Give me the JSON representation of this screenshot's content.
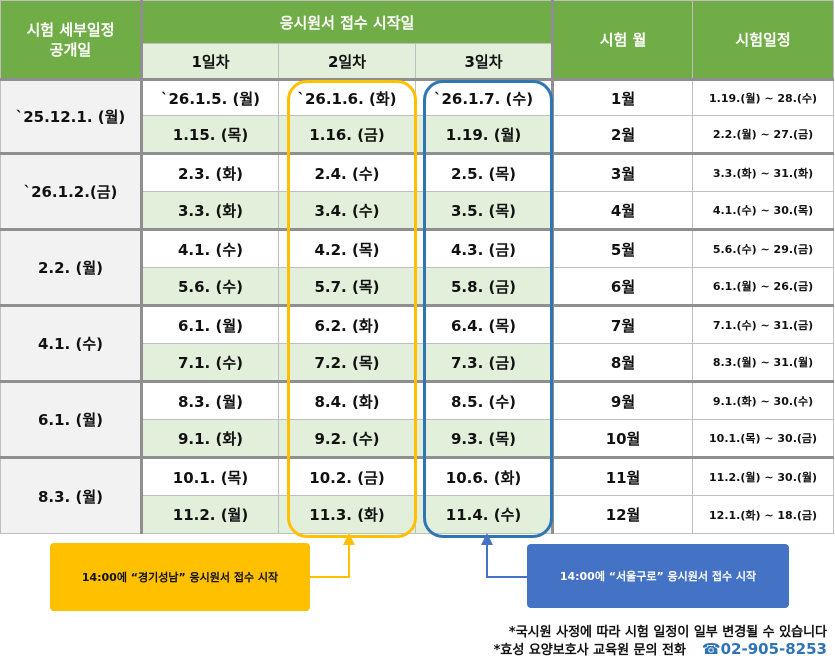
{
  "header": {
    "announce": "시험 세부일정\n공개일",
    "reception": "응시원서 접수 시작일",
    "rounds": [
      "1일차",
      "2일차",
      "3일차"
    ],
    "exam_month": "시험 월",
    "exam_schedule": "시험일정"
  },
  "groups": [
    {
      "announce": "`25.12.1. (월)",
      "rows": [
        {
          "d1": "`26.1.5. (월)",
          "d2": "`26.1.6. (화)",
          "d3": "`26.1.7. (수)",
          "month": "1월",
          "period": "1.19.(월) ~ 28.(수)"
        },
        {
          "d1": "1.15. (목)",
          "d2": "1.16. (금)",
          "d3": "1.19. (월)",
          "month": "2월",
          "period": "2.2.(월) ~ 27.(금)"
        }
      ]
    },
    {
      "announce": "`26.1.2.(금)",
      "rows": [
        {
          "d1": "2.3. (화)",
          "d2": "2.4. (수)",
          "d3": "2.5. (목)",
          "month": "3월",
          "period": "3.3.(화) ~ 31.(화)"
        },
        {
          "d1": "3.3. (화)",
          "d2": "3.4. (수)",
          "d3": "3.5. (목)",
          "month": "4월",
          "period": "4.1.(수) ~ 30.(목)"
        }
      ]
    },
    {
      "announce": "2.2. (월)",
      "rows": [
        {
          "d1": "4.1. (수)",
          "d2": "4.2. (목)",
          "d3": "4.3. (금)",
          "month": "5월",
          "period": "5.6.(수) ~ 29.(금)"
        },
        {
          "d1": "5.6. (수)",
          "d2": "5.7. (목)",
          "d3": "5.8. (금)",
          "month": "6월",
          "period": "6.1.(월) ~ 26.(금)"
        }
      ]
    },
    {
      "announce": "4.1. (수)",
      "rows": [
        {
          "d1": "6.1. (월)",
          "d2": "6.2. (화)",
          "d3": "6.4. (목)",
          "month": "7월",
          "period": "7.1.(수) ~ 31.(금)"
        },
        {
          "d1": "7.1. (수)",
          "d2": "7.2. (목)",
          "d3": "7.3. (금)",
          "month": "8월",
          "period": "8.3.(월) ~ 31.(월)"
        }
      ]
    },
    {
      "announce": "6.1. (월)",
      "rows": [
        {
          "d1": "8.3. (월)",
          "d2": "8.4. (화)",
          "d3": "8.5. (수)",
          "month": "9월",
          "period": "9.1.(화) ~ 30.(수)"
        },
        {
          "d1": "9.1. (화)",
          "d2": "9.2. (수)",
          "d3": "9.3. (목)",
          "month": "10월",
          "period": "10.1.(목) ~ 30.(금)"
        }
      ]
    },
    {
      "announce": "8.3. (월)",
      "rows": [
        {
          "d1": "10.1. (목)",
          "d2": "10.2. (금)",
          "d3": "10.6. (화)",
          "month": "11월",
          "period": "11.2.(월) ~ 30.(월)"
        },
        {
          "d1": "11.2. (월)",
          "d2": "11.3. (화)",
          "d3": "11.4. (수)",
          "month": "12월",
          "period": "12.1.(화) ~ 18.(금)"
        }
      ]
    }
  ],
  "callouts": {
    "left": "14:00에 “경기성남” 응시원서 접수 시작",
    "right": "14:00에 “서울구로” 응시원서 접수 시작",
    "left_color": "#ffc000",
    "right_color": "#4472c4",
    "highlight_orange": "#ffc000",
    "highlight_blue": "#2e75b6"
  },
  "notes": {
    "line1": "*국시원 사정에 따라 시험 일정이 일부 변경될 수 있습니다",
    "line2": "*효성 요양보호사 교육원 문의 전화",
    "phone": "☎02-905-8253"
  }
}
